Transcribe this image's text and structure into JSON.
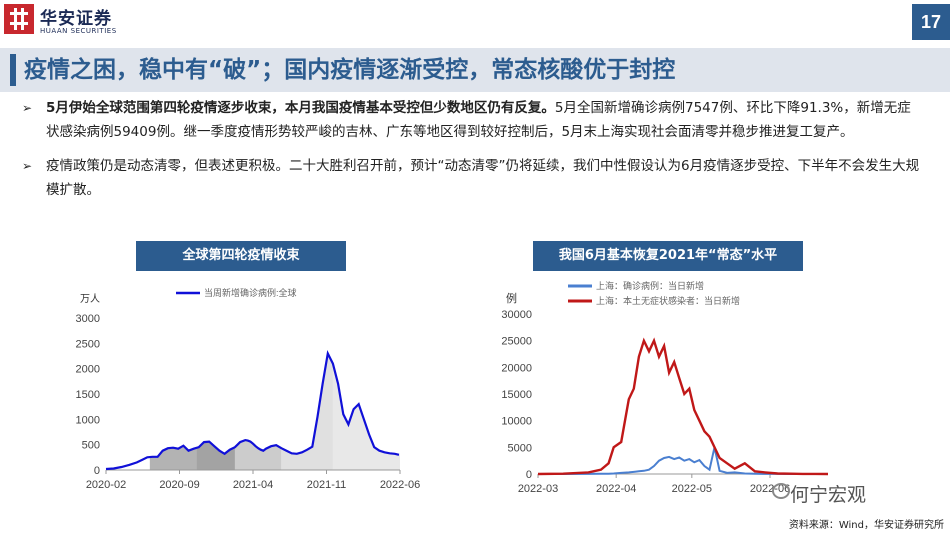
{
  "header": {
    "logo_cn": "华安证券",
    "logo_en": "HUAAN SECURITIES",
    "page_number": "17"
  },
  "title": "疫情之困，稳中有“破”；国内疫情逐渐受控，常态核酸优于封控",
  "bullets": [
    {
      "bold": "5月伊始全球范围第四轮疫情逐步收束，本月我国疫情基本受控但少数地区仍有反复。",
      "text": "5月全国新增确诊病例7547例、环比下降91.3%，新增无症状感染病例59409例。继一季度疫情形势较严峻的吉林、广东等地区得到较好控制后，5月末上海实现社会面清零并稳步推进复工复产。"
    },
    {
      "bold": "",
      "text": "疫情政策仍是动态清零，但表述更积极。二十大胜利召开前，预计“动态清零”仍将延续，我们中性假设认为6月疫情逐步受控、下半年不会发生大规模扩散。"
    }
  ],
  "chart_left": {
    "banner": "全球第四轮疫情收束",
    "unit": "万人",
    "legend": "当周新增确诊病例:全球",
    "series_color": "#1010d8",
    "chart_data": {
      "type": "area",
      "title": "全球第四轮疫情收束",
      "ylabel": "万人",
      "ylim": [
        0,
        3000
      ],
      "yticks": [
        "0",
        "500",
        "1000",
        "1500",
        "2000",
        "2500",
        "3000"
      ],
      "xticks": [
        "2020-02",
        "2020-09",
        "2021-04",
        "2021-11",
        "2022-06"
      ],
      "x_months": [
        0,
        1.5,
        3,
        4.5,
        6,
        7,
        8,
        9,
        10,
        11,
        12,
        13,
        14,
        15,
        16,
        17,
        18,
        19,
        20,
        21,
        22,
        22.5,
        23,
        24,
        25,
        25.5,
        26,
        27,
        27.5,
        28,
        28.5,
        29,
        29.5,
        30,
        30.5,
        31,
        32,
        33,
        34,
        35,
        36,
        37,
        38,
        39,
        40,
        41,
        42,
        43,
        44,
        45,
        46,
        47,
        48,
        49,
        50,
        51,
        52,
        53,
        54,
        55,
        56,
        56.8
      ],
      "values": [
        20,
        30,
        60,
        100,
        150,
        200,
        250,
        260,
        260,
        380,
        430,
        440,
        420,
        480,
        380,
        420,
        450,
        550,
        560,
        470,
        380,
        350,
        320,
        400,
        450,
        500,
        550,
        590,
        580,
        560,
        520,
        470,
        430,
        400,
        380,
        420,
        470,
        490,
        430,
        380,
        330,
        320,
        350,
        400,
        460,
        1050,
        1700,
        2300,
        2100,
        1700,
        1100,
        900,
        1200,
        1300,
        1000,
        700,
        450,
        380,
        350,
        330,
        320,
        300
      ],
      "shaded_waves": [
        [
          8.5,
          17.5
        ],
        [
          17.5,
          25
        ],
        [
          25,
          34
        ],
        [
          34,
          44
        ],
        [
          44,
          57
        ]
      ]
    }
  },
  "chart_right": {
    "banner": "我国6月基本恢复2021年“常态”水平",
    "unit": "例",
    "legend": [
      "上海：确诊病例：当日新增",
      "上海：本土无症状感染者：当日新增"
    ],
    "colors": [
      "#4a7fd0",
      "#c01818"
    ],
    "chart_data": {
      "type": "line",
      "title": "我国6月基本恢复2021年“常态”水平",
      "ylabel": "例",
      "ylim": [
        0,
        30000
      ],
      "yticks": [
        "0",
        "5000",
        "10000",
        "15000",
        "20000",
        "25000",
        "30000"
      ],
      "xticks": [
        "2022-03",
        "2022-04",
        "2022-05",
        "2022-06"
      ],
      "x_days": [
        0,
        10,
        20,
        25,
        28,
        30,
        33,
        36,
        38,
        40,
        42,
        44,
        46,
        48,
        50,
        52,
        54,
        56,
        58,
        60,
        62,
        64,
        66,
        68,
        70,
        72,
        75,
        78,
        82,
        86,
        90,
        95,
        100,
        105,
        110,
        115
      ],
      "series": [
        {
          "name": "上海：确诊病例：当日新增",
          "values": [
            0,
            0,
            10,
            30,
            50,
            100,
            200,
            300,
            400,
            500,
            600,
            800,
            1500,
            2500,
            3000,
            3200,
            2800,
            3100,
            2500,
            2800,
            2200,
            2600,
            1500,
            800,
            5000,
            600,
            200,
            300,
            100,
            50,
            20,
            10,
            5,
            0,
            0,
            0
          ]
        },
        {
          "name": "上海：本土无症状感染者：当日新增",
          "values": [
            0,
            50,
            300,
            800,
            2000,
            5000,
            6000,
            14000,
            16000,
            22000,
            25000,
            23000,
            25000,
            22000,
            24000,
            19000,
            21000,
            18000,
            15000,
            16000,
            12000,
            10000,
            8000,
            7000,
            5000,
            3000,
            2000,
            1000,
            2000,
            500,
            300,
            100,
            50,
            20,
            10,
            0
          ]
        }
      ]
    }
  },
  "source": "资料来源：Wind，华安证券研究所",
  "watermark": "何宁宏观"
}
